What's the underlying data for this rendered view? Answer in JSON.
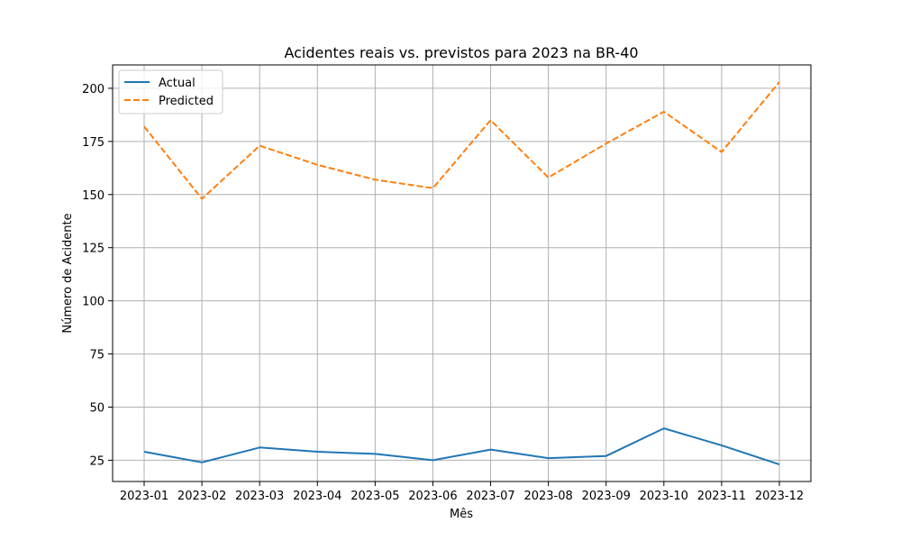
{
  "chart_data": {
    "type": "line",
    "title": "Acidentes reais vs. previstos para 2023 na BR-40",
    "xlabel": "Mês",
    "ylabel": "Número de Acidente",
    "categories": [
      "2023-01",
      "2023-02",
      "2023-03",
      "2023-04",
      "2023-05",
      "2023-06",
      "2023-07",
      "2023-08",
      "2023-09",
      "2023-10",
      "2023-11",
      "2023-12"
    ],
    "ylim": [
      15,
      211
    ],
    "yticks": [
      25,
      50,
      75,
      100,
      125,
      150,
      175,
      200
    ],
    "grid": true,
    "legend_position": "top-left",
    "series": [
      {
        "name": "Actual",
        "color": "#1f77b4",
        "style": "solid",
        "values": [
          29,
          24,
          31,
          29,
          28,
          25,
          30,
          26,
          27,
          40,
          32,
          23
        ]
      },
      {
        "name": "Predicted",
        "color": "#ff7f0e",
        "style": "dashed",
        "values": [
          182,
          148,
          173,
          164,
          157,
          153,
          185,
          158,
          174,
          189,
          170,
          203
        ]
      }
    ]
  }
}
